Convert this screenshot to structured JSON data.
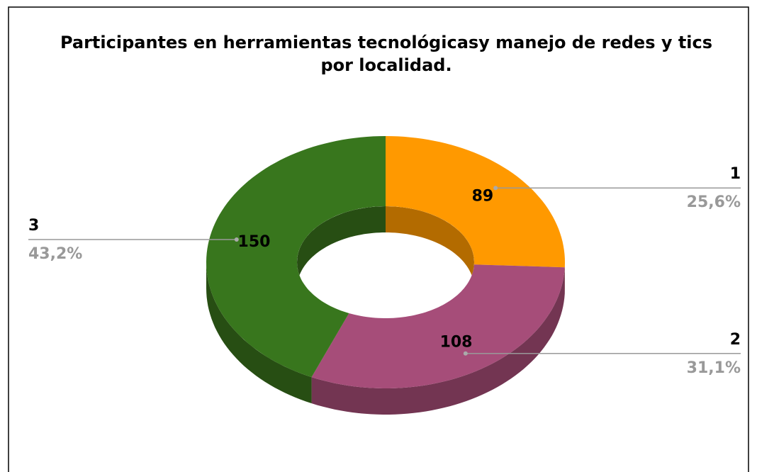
{
  "chart_data": {
    "type": "doughnut3d",
    "title": "Participantes en herramientas tecnológicasy manejo de redes y tics por localidad.",
    "categories": [
      "1",
      "2",
      "3"
    ],
    "values": [
      89,
      108,
      150
    ],
    "percentages": [
      25.6,
      31.1,
      43.2
    ],
    "percentage_labels": [
      "25,6%",
      "31,1%",
      "43,2%"
    ],
    "colors": [
      "#ff9900",
      "#a64d79",
      "#38761d"
    ],
    "side_colors": [
      "#b36b00",
      "#733552",
      "#274e13"
    ]
  }
}
